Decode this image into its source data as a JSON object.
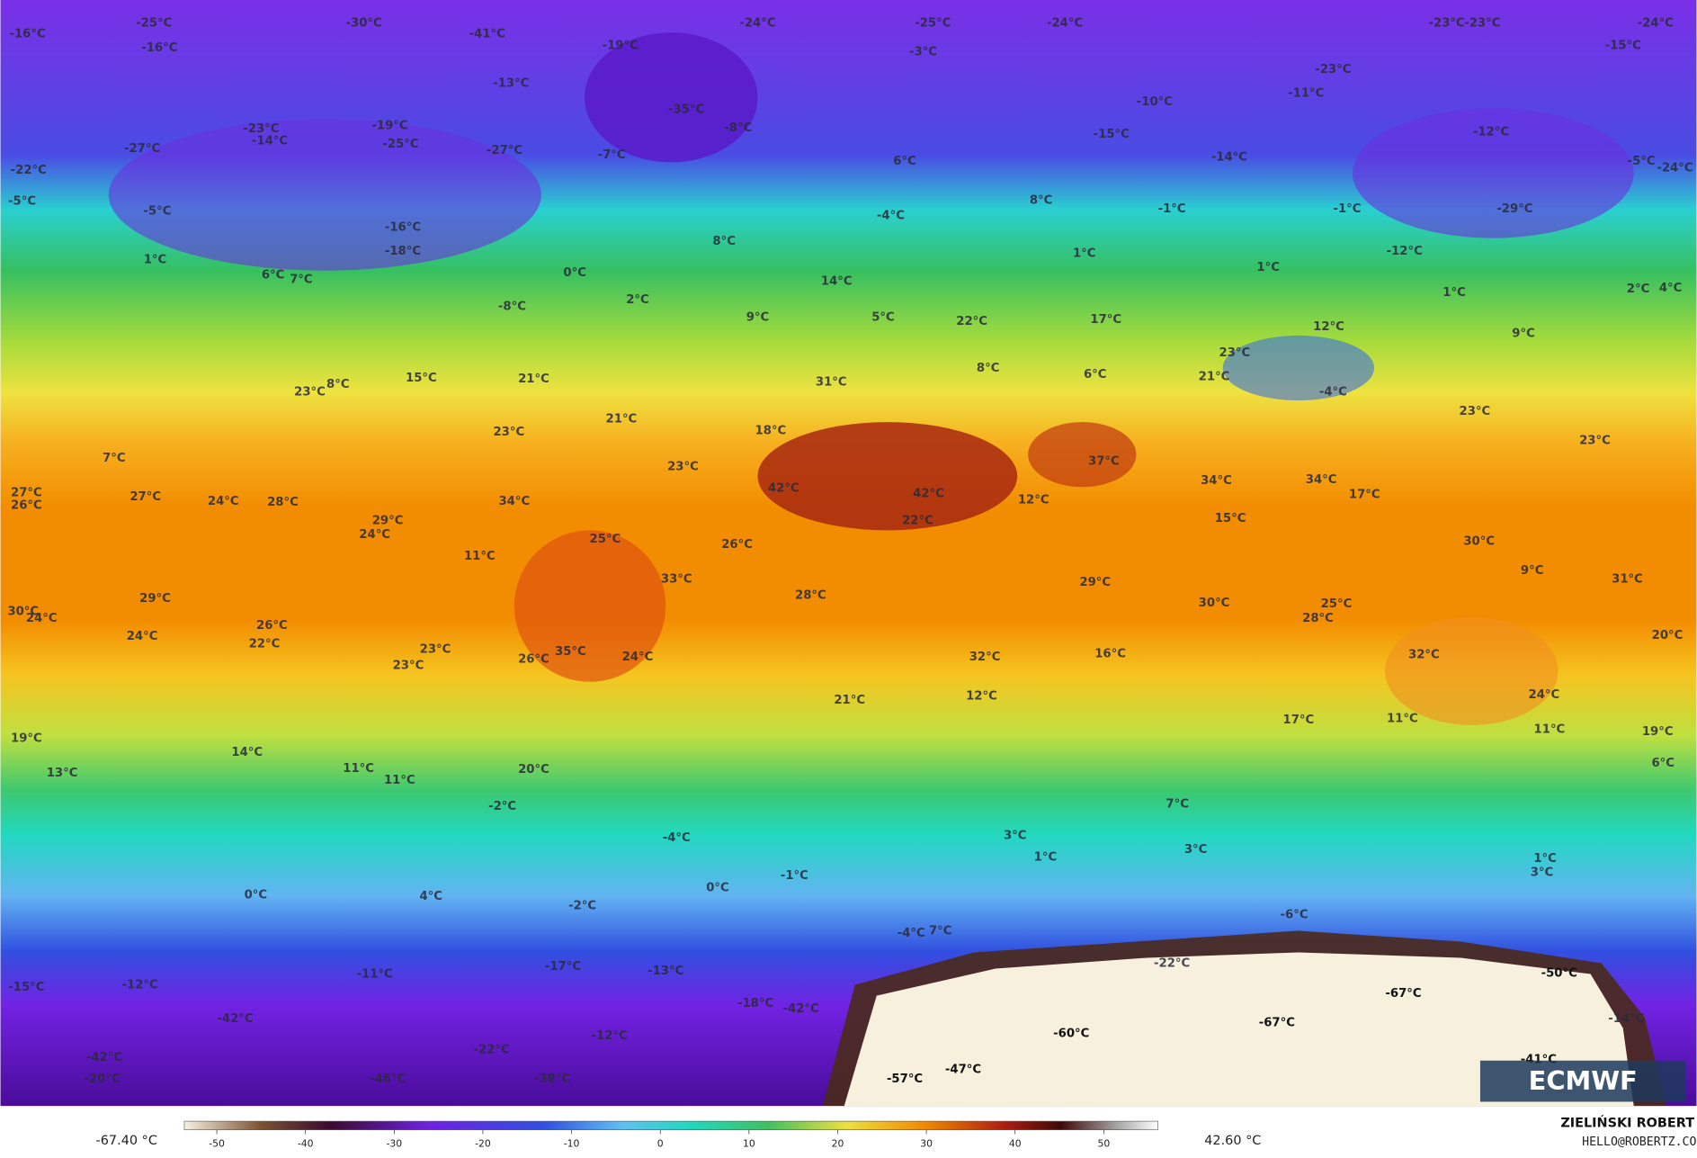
{
  "map": {
    "labels": [
      "-16°C",
      "-25°C",
      "-30°C",
      "-41°C",
      "-24°C",
      "-25°C",
      "-24°C",
      "-23°C",
      "-23°C",
      "-24°C",
      "-16°C",
      "-19°C",
      "-3°C",
      "-15°C",
      "-13°C",
      "-23°C",
      "-11°C",
      "-10°C",
      "-35°C",
      "-8°C",
      "-23°C",
      "-14°C",
      "-19°C",
      "-25°C",
      "-27°C",
      "-27°C",
      "-7°C",
      "-15°C",
      "-12°C",
      "-14°C",
      "-5°C",
      "-22°C",
      "-24°C",
      "-5°C",
      "-5°C",
      "6°C",
      "-1°C",
      "-1°C",
      "-29°C",
      "8°C",
      "-4°C",
      "-16°C",
      "-18°C",
      "8°C",
      "1°C",
      "1°C",
      "1°C",
      "-12°C",
      "0°C",
      "6°C",
      "7°C",
      "2°C",
      "2°C",
      "4°C",
      "14°C",
      "1°C",
      "-8°C",
      "9°C",
      "5°C",
      "22°C",
      "17°C",
      "12°C",
      "9°C",
      "15°C",
      "21°C",
      "23°C",
      "8°C",
      "8°C",
      "6°C",
      "23°C",
      "21°C",
      "31°C",
      "-4°C",
      "23°C",
      "21°C",
      "23°C",
      "18°C",
      "23°C",
      "7°C",
      "37°C",
      "34°C",
      "34°C",
      "17°C",
      "23°C",
      "42°C",
      "42°C",
      "12°C",
      "27°C",
      "26°C",
      "27°C",
      "24°C",
      "28°C",
      "34°C",
      "29°C",
      "24°C",
      "22°C",
      "15°C",
      "25°C",
      "26°C",
      "11°C",
      "30°C",
      "33°C",
      "9°C",
      "31°C",
      "29°C",
      "28°C",
      "30°C",
      "25°C",
      "28°C",
      "29°C",
      "30°C",
      "24°C",
      "26°C",
      "24°C",
      "22°C",
      "23°C",
      "23°C",
      "26°C",
      "35°C",
      "24°C",
      "32°C",
      "16°C",
      "32°C",
      "20°C",
      "21°C",
      "12°C",
      "24°C",
      "17°C",
      "11°C",
      "11°C",
      "19°C",
      "19°C",
      "14°C",
      "6°C",
      "13°C",
      "11°C",
      "11°C",
      "20°C",
      "7°C",
      "-2°C",
      "-4°C",
      "3°C",
      "1°C",
      "3°C",
      "1°C",
      "3°C",
      "-1°C",
      "0°C",
      "0°C",
      "4°C",
      "-2°C",
      "-6°C",
      "-4°C",
      "7°C",
      "-17°C",
      "-22°C",
      "-13°C",
      "-11°C",
      "-15°C",
      "-12°C",
      "-50°C",
      "-67°C",
      "-18°C",
      "-42°C",
      "-42°C",
      "-14°C",
      "-67°C",
      "-60°C",
      "-12°C",
      "-22°C",
      "-42°C",
      "-41°C",
      "-47°C",
      "-57°C",
      "-46°C",
      "-20°C",
      "-38°C"
    ],
    "colorbar": {
      "min": {
        "value": -67.4,
        "label": "-67.40 °C"
      },
      "max": {
        "value": 42.6,
        "label": "42.60 °C"
      },
      "ticks": [
        -50,
        -40,
        -30,
        -20,
        -10,
        0,
        10,
        20,
        30,
        40,
        50
      ]
    },
    "logo": "ECMWF",
    "credit": "ZIELIŃSKI ROBERT",
    "email": "HELLO@ROBERTZ.CO"
  }
}
